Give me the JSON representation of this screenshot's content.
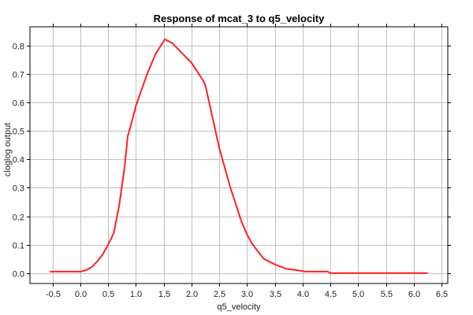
{
  "chart_data": {
    "type": "line",
    "title": "Response of mcat_3 to q5_velocity",
    "xlabel": "q5_velocity",
    "ylabel": "cloglog output",
    "xlim": [
      -0.907,
      6.61
    ],
    "ylim": [
      -0.037,
      0.867
    ],
    "xticks": [
      -0.5,
      0.0,
      0.5,
      1.0,
      1.5,
      2.0,
      2.5,
      3.0,
      3.5,
      4.0,
      4.5,
      5.0,
      5.5,
      6.0,
      6.5
    ],
    "xtick_labels": [
      "-0.5",
      "0.0",
      "0.5",
      "1.0",
      "1.5",
      "2.0",
      "2.5",
      "3.0",
      "3.5",
      "4.0",
      "4.5",
      "5.0",
      "5.5",
      "6.0",
      "6.5"
    ],
    "yticks": [
      0.0,
      0.1,
      0.2,
      0.3,
      0.4,
      0.5,
      0.6,
      0.7,
      0.8
    ],
    "ytick_labels": [
      "0.0",
      "0.1",
      "0.2",
      "0.3",
      "0.4",
      "0.5",
      "0.6",
      "0.7",
      "0.8"
    ],
    "grid": true,
    "series": [
      {
        "name": "response",
        "color": "#ff2020",
        "x": [
          -0.55,
          0.0,
          0.1,
          0.2,
          0.3,
          0.4,
          0.5,
          0.6,
          0.7,
          0.8,
          0.85,
          0.95,
          1.0,
          1.2,
          1.35,
          1.52,
          1.65,
          1.8,
          2.0,
          2.1,
          2.2,
          2.25,
          2.5,
          2.7,
          2.8,
          2.9,
          3.0,
          3.1,
          3.2,
          3.3,
          3.5,
          3.7,
          3.9,
          4.05,
          4.45,
          4.5,
          6.25
        ],
        "y": [
          0.005,
          0.005,
          0.01,
          0.02,
          0.04,
          0.065,
          0.1,
          0.14,
          0.24,
          0.38,
          0.48,
          0.55,
          0.59,
          0.7,
          0.77,
          0.823,
          0.81,
          0.78,
          0.74,
          0.71,
          0.68,
          0.66,
          0.44,
          0.3,
          0.24,
          0.18,
          0.135,
          0.1,
          0.075,
          0.05,
          0.03,
          0.015,
          0.01,
          0.005,
          0.005,
          0.0,
          0.0
        ]
      }
    ]
  }
}
